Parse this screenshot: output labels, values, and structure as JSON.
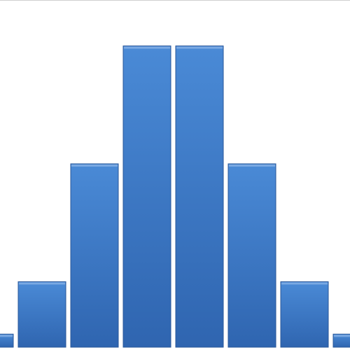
{
  "chart_data": {
    "type": "bar",
    "categories": [
      "",
      "",
      "",
      "",
      "",
      "",
      "",
      ""
    ],
    "values": [
      1,
      5,
      14,
      23,
      23,
      14,
      5,
      1
    ],
    "ylim": [
      0,
      26.4
    ],
    "grid": false,
    "legend": "none",
    "colors": {
      "bar_top": "#4a8ad6",
      "bar_bottom": "#2f65b0",
      "bar_edge": "#2a5799",
      "bar_highlight": "#8fb7e8"
    }
  }
}
